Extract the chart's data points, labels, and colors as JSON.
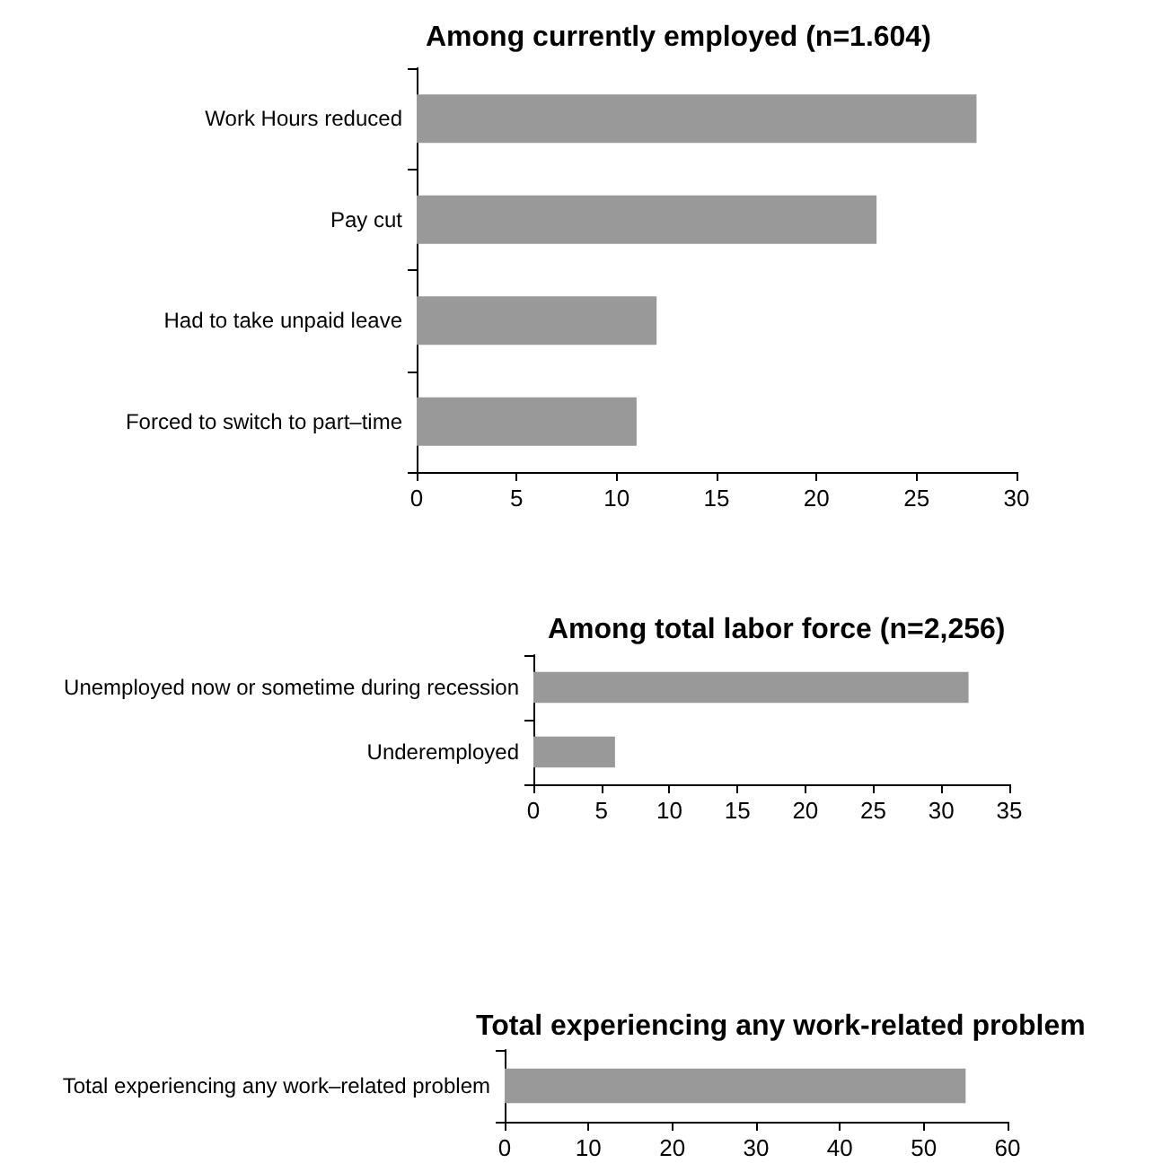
{
  "chart_data": [
    {
      "type": "bar",
      "orientation": "horizontal",
      "title": "Among currently employed (n=1.604)",
      "categories": [
        "Work Hours reduced",
        "Pay cut",
        "Had to take unpaid leave",
        "Forced to switch to part–time"
      ],
      "values": [
        28,
        23,
        12,
        11
      ],
      "color": "#999999",
      "xlim": [
        0,
        30
      ],
      "xticks": [
        0,
        5,
        10,
        15,
        20,
        25,
        30
      ],
      "grid": false
    },
    {
      "type": "bar",
      "orientation": "horizontal",
      "title": "Among total labor force (n=2,256)",
      "categories": [
        "Unemployed now or sometime during recession",
        "Underemployed"
      ],
      "values": [
        32,
        6
      ],
      "color": "#999999",
      "xlim": [
        0,
        35
      ],
      "xticks": [
        0,
        5,
        10,
        15,
        20,
        25,
        30,
        35
      ],
      "grid": false
    },
    {
      "type": "bar",
      "orientation": "horizontal",
      "title": "Total experiencing any work-related problem",
      "categories": [
        "Total experiencing any work–related problem"
      ],
      "values": [
        55
      ],
      "color": "#999999",
      "xlim": [
        0,
        60
      ],
      "xticks": [
        0,
        10,
        20,
        30,
        40,
        50,
        60
      ],
      "grid": false
    }
  ]
}
